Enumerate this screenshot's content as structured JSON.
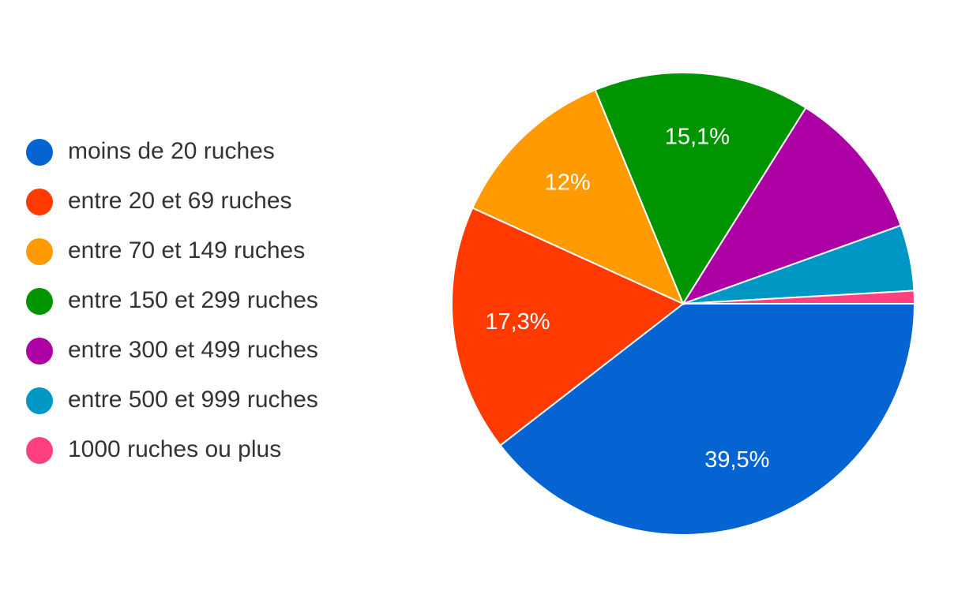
{
  "chart_data": {
    "type": "pie",
    "categories": [
      "moins de 20 ruches",
      "entre 20 et 69 ruches",
      "entre 70 et 149 ruches",
      "entre 150 et 299 ruches",
      "entre 300 et 499 ruches",
      "entre 500 et 999 ruches",
      "1000 ruches ou plus"
    ],
    "values": [
      39.5,
      17.3,
      12,
      15.1,
      10.6,
      4.6,
      0.9
    ],
    "value_labels": [
      "39,5%",
      "17,3%",
      "12%",
      "15,1%",
      null,
      null,
      null
    ],
    "colors": [
      "#0564d1",
      "#ff3a00",
      "#ff9a00",
      "#009500",
      "#ad00a4",
      "#0097c5",
      "#ff4080"
    ],
    "legend": "left"
  }
}
